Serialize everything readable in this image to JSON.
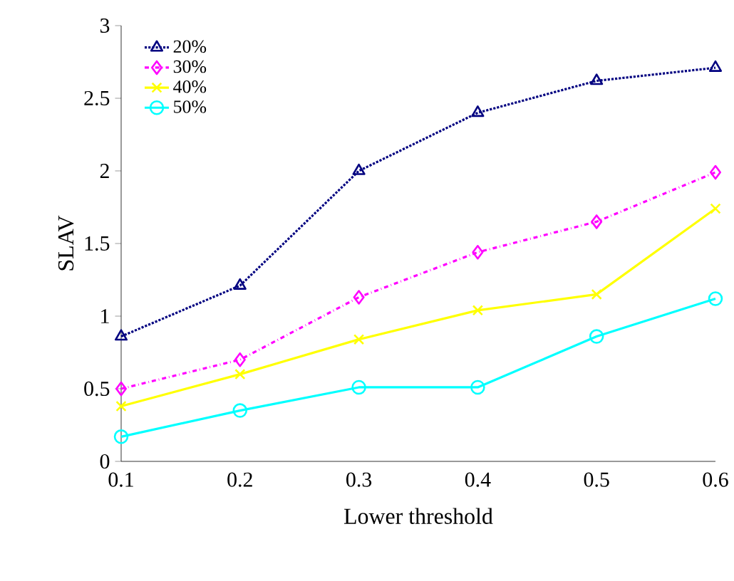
{
  "chart_data": {
    "type": "line",
    "xlabel": "Lower threshold",
    "ylabel": "SLAV",
    "x": [
      0.1,
      0.2,
      0.3,
      0.4,
      0.5,
      0.6
    ],
    "series": [
      {
        "name": "20%",
        "color": "#000080",
        "marker": "triangle",
        "line_style": "dotted",
        "values": [
          0.86,
          1.21,
          2.0,
          2.4,
          2.62,
          2.71
        ]
      },
      {
        "name": "30%",
        "color": "#ff00ff",
        "marker": "diamond",
        "line_style": "dashed",
        "values": [
          0.5,
          0.7,
          1.13,
          1.44,
          1.65,
          1.99
        ]
      },
      {
        "name": "40%",
        "color": "#ffff00",
        "marker": "cross",
        "line_style": "solid",
        "values": [
          0.38,
          0.6,
          0.84,
          1.04,
          1.15,
          1.74
        ]
      },
      {
        "name": "50%",
        "color": "#00ffff",
        "marker": "circle",
        "line_style": "solid",
        "values": [
          0.17,
          0.35,
          0.51,
          0.51,
          0.86,
          1.12
        ]
      }
    ],
    "xlim": [
      0.1,
      0.6
    ],
    "xticks": [
      0.1,
      0.2,
      0.3,
      0.4,
      0.5,
      0.6
    ],
    "ylim": [
      0,
      3
    ],
    "yticks": [
      0,
      0.5,
      1,
      1.5,
      2,
      2.5,
      3
    ],
    "grid": false,
    "legend": "top left"
  }
}
